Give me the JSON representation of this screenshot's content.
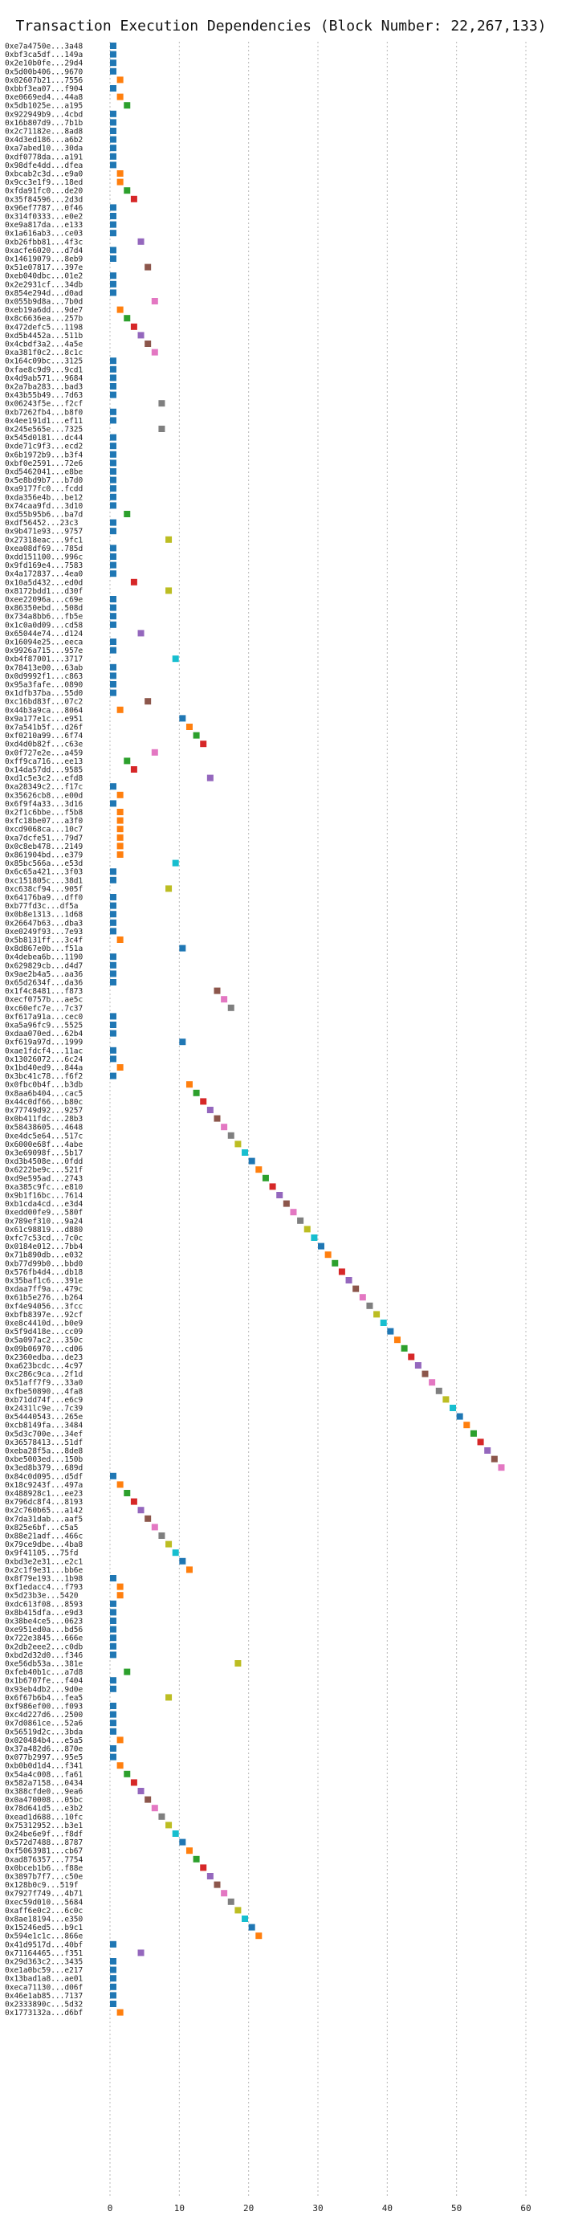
{
  "chart_data": {
    "type": "scatter",
    "title": "Transaction Execution Dependencies (Block Number: 22,267,133)",
    "xlabel": "",
    "ylabel": "",
    "xlim": [
      0,
      60
    ],
    "x_ticks": [
      0,
      10,
      20,
      30,
      40,
      50,
      60
    ],
    "grid": "vertical dashed",
    "marker": "square",
    "palette": [
      "#1f77b4",
      "#ff7f0e",
      "#2ca02c",
      "#d62728",
      "#9467bd",
      "#8c564b",
      "#e377c2",
      "#7f7f7f",
      "#bcbd22",
      "#17becf"
    ],
    "categories": [
      "0xe7a4750e...3a48",
      "0xbf3ca5df...149a",
      "0x2e10b0fe...29d4",
      "0x5d00b406...9670",
      "0x02607b21...7556",
      "0xbbf3ea07...f904",
      "0xe0669ed4...44a8",
      "0x5db1025e...a195",
      "0x922949b9...4cbd",
      "0x16b807d9...7b1b",
      "0x2c71182e...8ad8",
      "0x4d3ed186...a6b2",
      "0xa7abed10...30da",
      "0xdf0778da...a191",
      "0x98dfe4dd...dfea",
      "0xbcab2c3d...e9a0",
      "0x9cc3e1f9...18ed",
      "0xfda91fc0...de20",
      "0x35f84596...2d3d",
      "0x96ef7787...0f46",
      "0x314f0333...e0e2",
      "0xe9a817da...e133",
      "0x1a616ab3...ce03",
      "0xb26fbb81...4f3c",
      "0xacfe6020...d7d4",
      "0x14619079...8eb9",
      "0x51e07817...397e",
      "0xeb040dbc...01e2",
      "0x2e2931cf...34db",
      "0x854e294d...d0ad",
      "0x055b9d8a...7b0d",
      "0xeb19a6dd...9de7",
      "0x8c6636ea...257b",
      "0x472defc5...1198",
      "0xd5b4452a...511b",
      "0x4cbdf3a2...4a5e",
      "0xa381f0c2...8c1c",
      "0x164c09bc...3125",
      "0xfae8c9d9...9cd1",
      "0x4d9ab571...9684",
      "0x2a7ba283...bad3",
      "0x43b55b49...7d63",
      "0x06243f5e...f2cf",
      "0xb7262fb4...b8f0",
      "0x4ee191d1...ef11",
      "0x245e565e...7325",
      "0x545d0181...dc44",
      "0xde71c9f3...ecd2",
      "0x6b1972b9...b3f4",
      "0xbf0e2591...72e6",
      "0xd5462041...e8be",
      "0x5e8bd9b7...b7d0",
      "0xa9177fc0...fcdd",
      "0xda356e4b...be12",
      "0x74caa9fd...3d10",
      "0xd55b95b6...ba7d",
      "0xdf56452...23c3",
      "0x9b471e93...9757",
      "0x27318eac...9fc1",
      "0xea08df69...785d",
      "0xdd151100...996c",
      "0x9fd169e4...7583",
      "0x4a172837...4ea0",
      "0x10a5d432...ed0d",
      "0x8172bdd1...d30f",
      "0xee22096a...c69e",
      "0x86350ebd...508d",
      "0x734a8bb6...fb5e",
      "0x1c0a0d09...cd58",
      "0x65044e74...d124",
      "0x16094e25...eeca",
      "0x9926a715...957e",
      "0xb4f87001...3717",
      "0x78413e00...63ab",
      "0x0d9992f1...c863",
      "0x95a3fafe...0890",
      "0x1dfb37ba...55d0",
      "0xc16bd83f...07c2",
      "0x44b3a9ca...8064",
      "0x9a177e1c...e951",
      "0x7a541b5f...d26f",
      "0xf0210a99...6f74",
      "0xd4d0b82f...c63e",
      "0x0f727e2e...a459",
      "0xff9ca716...ee13",
      "0x14da57dd...9585",
      "0xd1c5e3c2...efd8",
      "0xa28349c2...f17c",
      "0x35626cb8...e00d",
      "0x6f9f4a33...3d16",
      "0x2f1c6bbe...f5b8",
      "0xfc18be07...a3f0",
      "0xcd9068ca...10c7",
      "0xa7dcfe51...79d7",
      "0x0c8eb478...2149",
      "0x861904bd...e379",
      "0x85bc566a...e53d",
      "0x6c65a421...3f03",
      "0xc151805c...38d1",
      "0xc638cf94...905f",
      "0x64176ba9...dff0",
      "0xb77fd3c...df5a",
      "0x0b8e1313...1d68",
      "0x26647b63...dba3",
      "0xe0249f93...7e93",
      "0x5b8131ff...3c4f",
      "0x8d867e0b...f51a",
      "0x4debea6b...1190",
      "0x629829cb...d4d7",
      "0x9ae2b4a5...aa36",
      "0x65d2634f...da36",
      "0x1f4c8481...f873",
      "0xecf0757b...ae5c",
      "0xc60efc7e...7c37",
      "0xf617a91a...cec0",
      "0xa5a96fc9...5525",
      "0xdaa070ed...62b4",
      "0xf619a97d...1999",
      "0xae1fdcf4...11ac",
      "0x13026072...6c24",
      "0x1bd40ed9...844a",
      "0x3bc41c78...f6f2",
      "0x0fbc0b4f...b3db",
      "0x8aa6b404...cac5",
      "0x44c0df66...b80c",
      "0x77749d92...9257",
      "0x0b411fdc...28b3",
      "0x58438605...4648",
      "0xe4dc5e64...517c",
      "0x6000e68f...4abe",
      "0x3e69098f...5b17",
      "0xd3b4508e...0fdd",
      "0x6222be9c...521f",
      "0xd9e595ad...2743",
      "0xa385c9fc...e810",
      "0x9b1f16bc...7614",
      "0xb1cda4cd...e3d4",
      "0xedd00fe9...580f",
      "0x789ef310...9a24",
      "0x61c98819...d880",
      "0xfc7c53cd...7c0c",
      "0x0184e012...7bb4",
      "0x71b890db...e032",
      "0xb77d99b0...bbd0",
      "0x576fb4d4...db18",
      "0x35baf1c6...391e",
      "0xdaa7ff9a...479c",
      "0x61b5e276...b264",
      "0xf4e94056...3fcc",
      "0xbfb8397e...92cf",
      "0xe8c4410d...b0e9",
      "0x5f9d418e...cc09",
      "0x5a097ac2...350c",
      "0x09b06970...cd06",
      "0x2360edba...de23",
      "0xa623bcdc...4c97",
      "0xc286c9ca...2f1d",
      "0x51aff7f9...33a0",
      "0xfbe50890...4fa8",
      "0xb71dd74f...e6c9",
      "0x2431lc9e...7c39",
      "0x54440543...265e",
      "0xcb8149fa...3484",
      "0x5d3c700e...34ef",
      "0x36578413...51df",
      "0xeba28f5a...8de8",
      "0xbe5003ed...150b",
      "0x3ed8b379...689d",
      "0x84c0d095...d5df",
      "0x18c9243f...497a",
      "0x488928c1...ee23",
      "0x796dc8f4...8193",
      "0x2c760b65...a142",
      "0x7da31dab...aaf5",
      "0x825e6bf...c5a5",
      "0x88e21adf...466c",
      "0x79ce9dbe...4ba8",
      "0x9f41105...75fd",
      "0xbd3e2e31...e2c1",
      "0x2c1f9e31...bb6e",
      "0x8f79e193...1b98",
      "0xf1edacc4...f793",
      "0x5d23b3e...5420",
      "0xdc613f08...8593",
      "0x8b415dfa...e9d3",
      "0x38be4ce5...0623",
      "0xe951ed0a...bd56",
      "0x722e3845...666e",
      "0x2db2eee2...c0db",
      "0xbd2d32d0...f346",
      "0xe56db53a...381e",
      "0xfeb40b1c...a7d8",
      "0x1b6707fe...f404",
      "0x93eb4db2...9d0e",
      "0x6f67b6b4...fea5",
      "0xf986ef00...f093",
      "0xc4d227d6...2500",
      "0x7d0861ce...52a6",
      "0x56519d2c...3bda",
      "0x020484b4...e5a5",
      "0x37a482d6...870e",
      "0x077b2997...95e5",
      "0xb0b0d1d4...f341",
      "0x54a4c008...fa61",
      "0x582a7158...0434",
      "0x388cfde0...9ea6",
      "0x0a470008...05bc",
      "0x78d641d5...e3b2",
      "0xead1d688...10fc",
      "0x75312952...b3e1",
      "0x24be6e9f...f8df",
      "0x572d7488...8787",
      "0xf5063981...cb67",
      "0xad876357...7754",
      "0x0bceb1b6...f88e",
      "0x3897b7f7...c50e",
      "0x128b0c9...519f",
      "0x7927f749...4b71",
      "0xec59d010...5684",
      "0xaff6e0c2...6c0c",
      "0x8ae18194...e350",
      "0x15246ed5...b9c1",
      "0x594e1c1c...866e",
      "0x41d9517d...40bf",
      "0x71164465...f351",
      "0x29d363c2...3435",
      "0xe1a0bc59...e217",
      "0x13bad1a8...ae01",
      "0xeca71130...d06f",
      "0x46e1ab85...7137",
      "0x2333890c...5d32",
      "0x1773132a...d6bf"
    ],
    "x": [
      0,
      0,
      0,
      0,
      1,
      0,
      1,
      2,
      0,
      0,
      0,
      0,
      0,
      0,
      0,
      1,
      1,
      2,
      3,
      0,
      0,
      0,
      0,
      4,
      0,
      0,
      5,
      0,
      0,
      0,
      6,
      1,
      2,
      3,
      4,
      5,
      6,
      0,
      0,
      0,
      0,
      0,
      7,
      0,
      0,
      7,
      0,
      0,
      0,
      0,
      0,
      0,
      0,
      0,
      0,
      2,
      0,
      0,
      8,
      0,
      0,
      0,
      0,
      3,
      8,
      0,
      0,
      0,
      0,
      4,
      0,
      0,
      9,
      0,
      0,
      0,
      0,
      5,
      1,
      10,
      11,
      12,
      13,
      6,
      2,
      3,
      14,
      0,
      1,
      0,
      1,
      1,
      1,
      1,
      1,
      1,
      9,
      0,
      0,
      8,
      0,
      0,
      0,
      0,
      0,
      1,
      10,
      0,
      0,
      0,
      0,
      15,
      16,
      17,
      0,
      0,
      0,
      10,
      0,
      0,
      1,
      0,
      11,
      12,
      13,
      14,
      15,
      16,
      17,
      18,
      19,
      20,
      21,
      22,
      23,
      24,
      25,
      26,
      27,
      28,
      29,
      30,
      31,
      32,
      33,
      34,
      35,
      36,
      37,
      38,
      39,
      40,
      41,
      42,
      43,
      44,
      45,
      46,
      47,
      48,
      49,
      50,
      51,
      52,
      53,
      54,
      55,
      56,
      0,
      1,
      2,
      3,
      4,
      5,
      6,
      7,
      8,
      9,
      10,
      11,
      0,
      1,
      1,
      0,
      0,
      0,
      0,
      0,
      0,
      0,
      18,
      2,
      0,
      0,
      8,
      0,
      0,
      0,
      0,
      1,
      0,
      0,
      1,
      2,
      3,
      4,
      5,
      6,
      7,
      8,
      9,
      10,
      11,
      12,
      13,
      14,
      15,
      16,
      17,
      18,
      19,
      20,
      21,
      0,
      4,
      0,
      0,
      0,
      0,
      0,
      0,
      1
    ]
  }
}
